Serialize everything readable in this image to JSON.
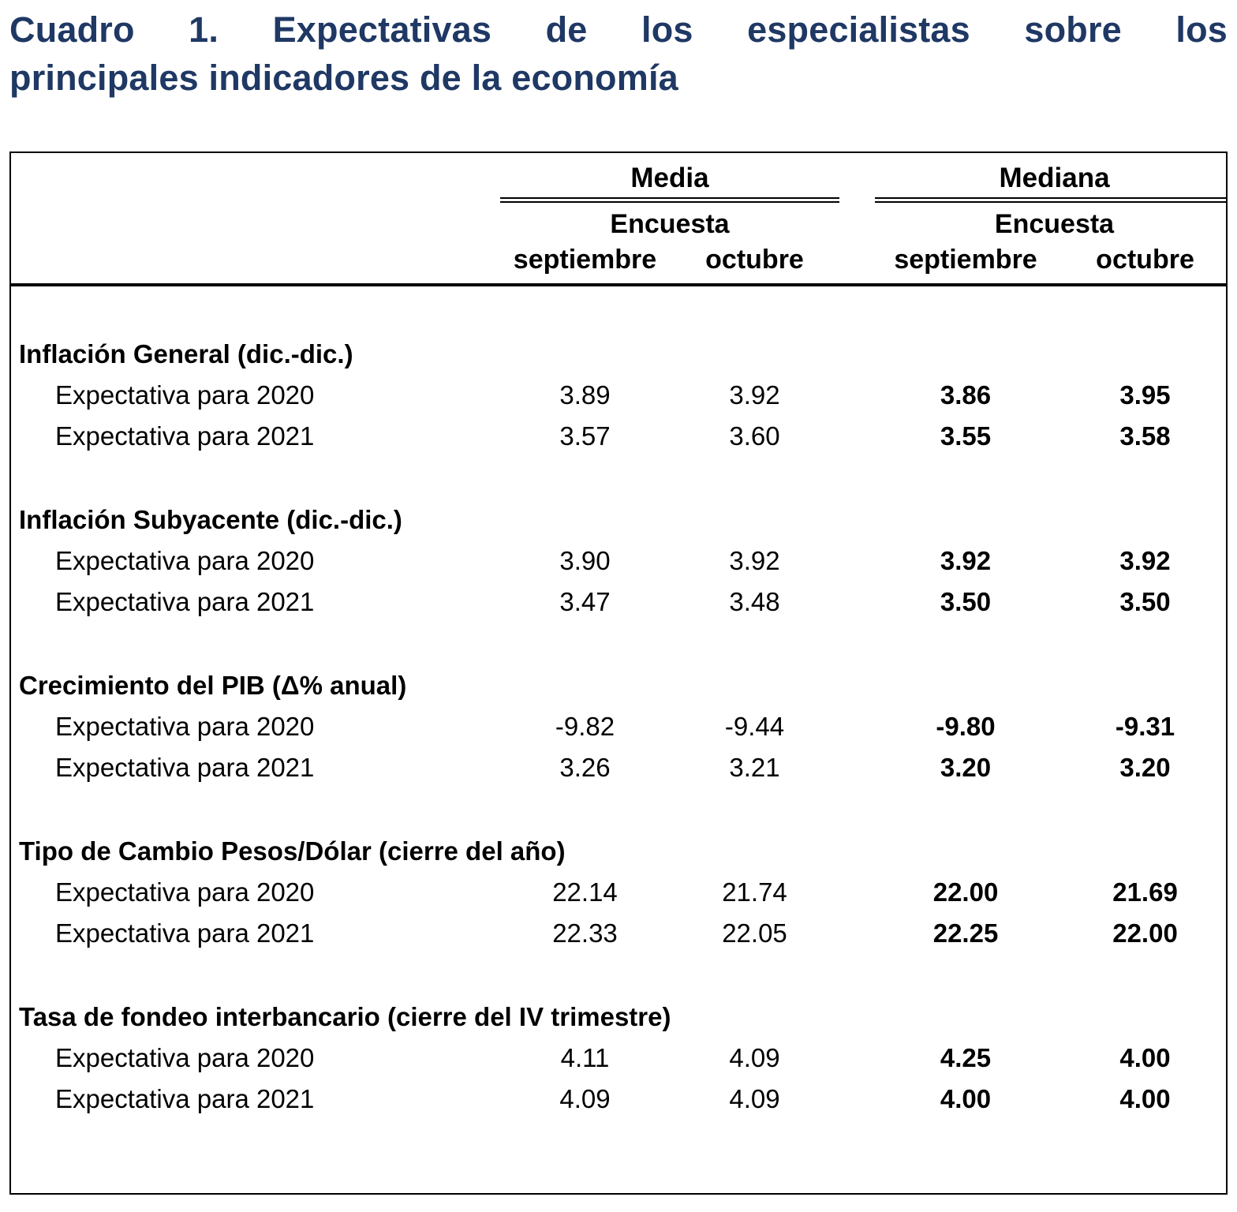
{
  "title": {
    "line1": "Cuadro 1. Expectativas de los especialistas sobre los",
    "line2": "principales indicadores de la economía"
  },
  "colors": {
    "title": "#1f3864",
    "text": "#000000",
    "rules": "#000000"
  },
  "table": {
    "group_headers": [
      "Media",
      "Mediana"
    ],
    "subheaders": [
      "Encuesta",
      "Encuesta"
    ],
    "col_headers": [
      "septiembre",
      "octubre",
      "septiembre",
      "octubre"
    ],
    "sections": [
      {
        "header": "Inflación General (dic.-dic.)",
        "rows": [
          {
            "label": "Expectativa para 2020",
            "values": [
              "3.89",
              "3.92",
              "3.86",
              "3.95"
            ]
          },
          {
            "label": "Expectativa para 2021",
            "values": [
              "3.57",
              "3.60",
              "3.55",
              "3.58"
            ]
          }
        ]
      },
      {
        "header": "Inflación Subyacente (dic.-dic.)",
        "rows": [
          {
            "label": "Expectativa para 2020",
            "values": [
              "3.90",
              "3.92",
              "3.92",
              "3.92"
            ]
          },
          {
            "label": "Expectativa para 2021",
            "values": [
              "3.47",
              "3.48",
              "3.50",
              "3.50"
            ]
          }
        ]
      },
      {
        "header": "Crecimiento del PIB (Δ% anual)",
        "rows": [
          {
            "label": "Expectativa para 2020",
            "values": [
              "-9.82",
              "-9.44",
              "-9.80",
              "-9.31"
            ]
          },
          {
            "label": "Expectativa para 2021",
            "values": [
              "3.26",
              "3.21",
              "3.20",
              "3.20"
            ]
          }
        ]
      },
      {
        "header": "Tipo de Cambio Pesos/Dólar (cierre del año)",
        "rows": [
          {
            "label": "Expectativa para 2020",
            "values": [
              "22.14",
              "21.74",
              "22.00",
              "21.69"
            ]
          },
          {
            "label": "Expectativa para 2021",
            "values": [
              "22.33",
              "22.05",
              "22.25",
              "22.00"
            ]
          }
        ]
      },
      {
        "header": "Tasa de fondeo interbancario (cierre del IV trimestre)",
        "rows": [
          {
            "label": "Expectativa para 2020",
            "values": [
              "4.11",
              "4.09",
              "4.25",
              "4.00"
            ]
          },
          {
            "label": "Expectativa para 2021",
            "values": [
              "4.09",
              "4.09",
              "4.00",
              "4.00"
            ]
          }
        ]
      }
    ]
  }
}
